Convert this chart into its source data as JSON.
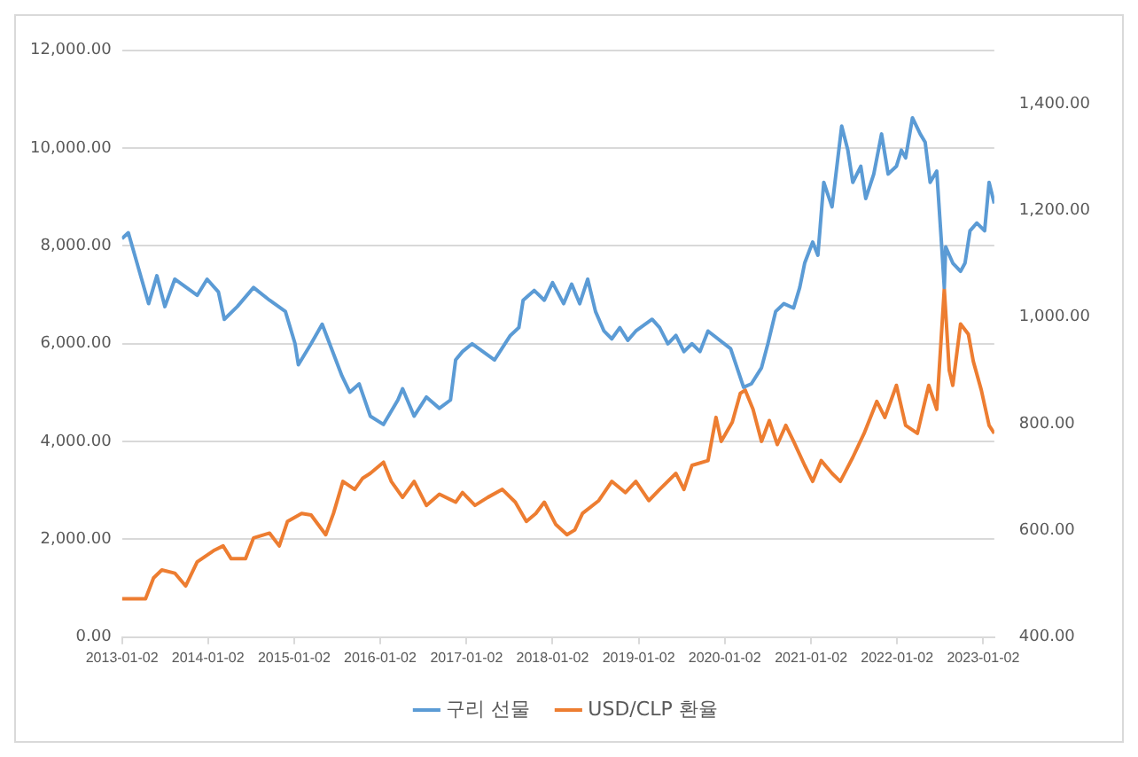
{
  "chart_data": {
    "type": "line",
    "legend": "bottom",
    "grid": "y",
    "marker": "none",
    "line_style": "solid",
    "xlim": [
      "2013-01-02",
      "2023-02-18"
    ],
    "xticks": [
      "2013-01-02",
      "2014-01-02",
      "2015-01-02",
      "2016-01-02",
      "2017-01-02",
      "2018-01-02",
      "2019-01-02",
      "2020-01-02",
      "2021-01-02",
      "2022-01-02",
      "2023-01-02"
    ],
    "ylim": [
      0,
      12000
    ],
    "yticks": [
      {
        "value": 0,
        "label": "0.00"
      },
      {
        "value": 2000,
        "label": "2,000.00"
      },
      {
        "value": 4000,
        "label": "4,000.00"
      },
      {
        "value": 6000,
        "label": "6,000.00"
      },
      {
        "value": 8000,
        "label": "8,000.00"
      },
      {
        "value": 10000,
        "label": "10,000.00"
      },
      {
        "value": 12000,
        "label": "12,000.00"
      }
    ],
    "y2lim": [
      400,
      1500
    ],
    "y2ticks": [
      {
        "value": 400,
        "label": "400.00"
      },
      {
        "value": 600,
        "label": "600.00"
      },
      {
        "value": 800,
        "label": "800.00"
      },
      {
        "value": 1000,
        "label": "1,000.00"
      },
      {
        "value": 1200,
        "label": "1,200.00"
      },
      {
        "value": 1400,
        "label": "1,400.00"
      }
    ],
    "series": [
      {
        "name": "구리 선물",
        "color": "#5b9bd5",
        "x": [
          "2013-01-02",
          "2013-01-29",
          "2013-04-25",
          "2013-05-30",
          "2013-07-03",
          "2013-08-14",
          "2013-11-17",
          "2013-12-29",
          "2014-02-15",
          "2014-03-12",
          "2014-05-06",
          "2014-07-14",
          "2014-09-20",
          "2014-11-26",
          "2015-01-06",
          "2015-01-20",
          "2015-03-15",
          "2015-05-01",
          "2015-07-24",
          "2015-08-26",
          "2015-10-05",
          "2015-11-21",
          "2016-01-16",
          "2016-03-17",
          "2016-04-06",
          "2016-05-25",
          "2016-07-16",
          "2016-09-09",
          "2016-10-26",
          "2016-11-17",
          "2016-12-16",
          "2017-01-26",
          "2017-05-01",
          "2017-07-07",
          "2017-08-12",
          "2017-08-30",
          "2017-10-16",
          "2017-11-28",
          "2018-01-02",
          "2018-02-18",
          "2018-03-24",
          "2018-04-27",
          "2018-05-31",
          "2018-07-03",
          "2018-08-08",
          "2018-09-10",
          "2018-10-14",
          "2018-11-17",
          "2018-12-21",
          "2019-02-28",
          "2019-04-01",
          "2019-05-06",
          "2019-06-09",
          "2019-07-13",
          "2019-08-16",
          "2019-09-19",
          "2019-10-23",
          "2020-01-27",
          "2020-03-22",
          "2020-04-24",
          "2020-06-06",
          "2020-07-03",
          "2020-08-05",
          "2020-09-09",
          "2020-10-20",
          "2020-11-15",
          "2020-12-06",
          "2021-01-09",
          "2021-01-31",
          "2021-02-25",
          "2021-04-01",
          "2021-05-12",
          "2021-06-07",
          "2021-06-28",
          "2021-08-01",
          "2021-08-22",
          "2021-09-25",
          "2021-10-28",
          "2021-11-25",
          "2021-12-30",
          "2022-01-20",
          "2022-02-07",
          "2022-03-08",
          "2022-04-10",
          "2022-05-01",
          "2022-05-22",
          "2022-06-19",
          "2022-07-08",
          "2022-07-21",
          "2022-07-27",
          "2022-08-26",
          "2022-09-28",
          "2022-10-17",
          "2022-11-07",
          "2022-12-06",
          "2023-01-08",
          "2023-01-27",
          "2023-02-18"
        ],
        "values": [
          8150,
          8270,
          6820,
          7390,
          6760,
          7320,
          6990,
          7320,
          7060,
          6500,
          6760,
          7150,
          6890,
          6660,
          6000,
          5570,
          6000,
          6400,
          5340,
          5010,
          5180,
          4520,
          4350,
          4850,
          5080,
          4520,
          4910,
          4680,
          4850,
          5670,
          5840,
          6000,
          5670,
          6170,
          6330,
          6890,
          7090,
          6890,
          7250,
          6820,
          7220,
          6820,
          7320,
          6660,
          6260,
          6100,
          6330,
          6070,
          6260,
          6500,
          6330,
          6000,
          6170,
          5840,
          6000,
          5840,
          6260,
          5900,
          5110,
          5180,
          5510,
          6000,
          6660,
          6820,
          6730,
          7150,
          7650,
          8080,
          7810,
          9300,
          8800,
          10450,
          9960,
          9300,
          9630,
          8970,
          9470,
          10290,
          9470,
          9630,
          9960,
          9800,
          10620,
          10290,
          10120,
          9300,
          9530,
          8140,
          7150,
          7980,
          7650,
          7480,
          7650,
          8310,
          8470,
          8310,
          9300,
          8870
        ]
      },
      {
        "name": "USD/CLP 환율",
        "color": "#ed7d31",
        "axis": "y2",
        "x": [
          "2013-01-02",
          "2013-04-12",
          "2013-05-16",
          "2013-06-20",
          "2013-08-14",
          "2013-09-29",
          "2013-11-17",
          "2014-01-25",
          "2014-03-07",
          "2014-04-10",
          "2014-06-10",
          "2014-07-14",
          "2014-09-20",
          "2014-10-31",
          "2014-12-05",
          "2015-02-03",
          "2015-03-15",
          "2015-05-16",
          "2015-06-18",
          "2015-07-28",
          "2015-09-16",
          "2015-10-20",
          "2015-11-21",
          "2016-01-16",
          "2016-02-18",
          "2016-04-06",
          "2016-05-25",
          "2016-07-16",
          "2016-09-09",
          "2016-11-17",
          "2016-12-16",
          "2017-02-07",
          "2017-04-02",
          "2017-06-03",
          "2017-07-28",
          "2017-09-13",
          "2017-10-23",
          "2017-11-28",
          "2018-01-16",
          "2018-03-04",
          "2018-04-06",
          "2018-05-09",
          "2018-07-17",
          "2018-09-10",
          "2018-11-07",
          "2018-12-21",
          "2019-02-14",
          "2019-04-01",
          "2019-06-09",
          "2019-07-13",
          "2019-08-16",
          "2019-10-23",
          "2019-11-26",
          "2019-12-18",
          "2020-02-03",
          "2020-03-08",
          "2020-03-29",
          "2020-05-01",
          "2020-06-06",
          "2020-07-09",
          "2020-08-12",
          "2020-09-17",
          "2020-10-20",
          "2020-12-06",
          "2021-01-09",
          "2021-02-14",
          "2021-04-01",
          "2021-05-06",
          "2021-06-28",
          "2021-08-15",
          "2021-10-08",
          "2021-11-11",
          "2021-12-30",
          "2022-02-07",
          "2022-03-29",
          "2022-05-16",
          "2022-06-19",
          "2022-07-21",
          "2022-08-11",
          "2022-08-26",
          "2022-09-28",
          "2022-10-31",
          "2022-11-21",
          "2022-12-25",
          "2023-01-27",
          "2023-02-18"
        ],
        "values": [
          472,
          472,
          511,
          526,
          520,
          496,
          541,
          562,
          571,
          547,
          547,
          586,
          595,
          571,
          617,
          632,
          629,
          592,
          632,
          692,
          677,
          698,
          707,
          728,
          692,
          662,
          692,
          647,
          668,
          653,
          671,
          647,
          662,
          677,
          653,
          617,
          632,
          653,
          611,
          592,
          601,
          632,
          656,
          692,
          671,
          692,
          656,
          677,
          707,
          677,
          722,
          731,
          812,
          767,
          803,
          857,
          863,
          827,
          767,
          806,
          761,
          797,
          767,
          722,
          692,
          731,
          707,
          692,
          737,
          782,
          842,
          812,
          872,
          797,
          782,
          872,
          827,
          1053,
          900,
          872,
          987,
          968,
          917,
          863,
          797,
          782
        ]
      }
    ]
  }
}
